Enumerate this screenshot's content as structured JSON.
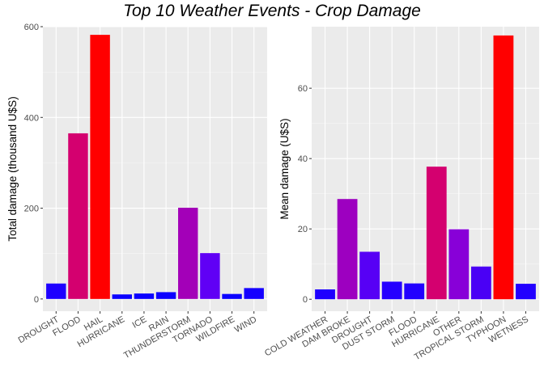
{
  "title": "Top 10 Weather Events - Crop Damage",
  "chart_data": [
    {
      "type": "bar",
      "ylabel": "Total damage (thousand U$S)",
      "xlabel": "",
      "ylim": [
        -27,
        600
      ],
      "yticks": [
        0,
        200,
        400,
        600
      ],
      "grid": true,
      "categories": [
        "DROUGHT",
        "FLOOD",
        "HAIL",
        "HURRICANE",
        "ICE",
        "RAIN",
        "THUNDERSTORM",
        "TORNADO",
        "WILDFIRE",
        "WIND"
      ],
      "values": [
        34,
        365,
        582,
        10,
        12,
        15,
        201,
        101,
        11,
        24
      ],
      "colors": [
        "#1e00ff",
        "#d4006f",
        "#ff0000",
        "#0a00ff",
        "#0b00ff",
        "#0d00ff",
        "#a300b8",
        "#6000f5",
        "#0a00ff",
        "#1500ff"
      ]
    },
    {
      "type": "bar",
      "ylabel": "Mean damage (U$S)",
      "xlabel": "",
      "ylim": [
        -3.4,
        77.5
      ],
      "yticks": [
        0,
        20,
        40,
        60
      ],
      "grid": true,
      "categories": [
        "COLD WEATHER",
        "DAM BROKE",
        "DROUGHT",
        "DUST STORM",
        "FLOOD",
        "HURRICANE",
        "OTHER",
        "TROPICAL STORM",
        "TYPHOON",
        "WETNESS"
      ],
      "values": [
        2.8,
        28.5,
        13.5,
        5.0,
        4.5,
        37.7,
        19.9,
        9.3,
        75.0,
        4.4
      ],
      "colors": [
        "#1e00ff",
        "#9d00c0",
        "#5700f5",
        "#2500ff",
        "#2200ff",
        "#d4006f",
        "#8800d8",
        "#4a00f5",
        "#ff0000",
        "#2200ff"
      ]
    }
  ]
}
